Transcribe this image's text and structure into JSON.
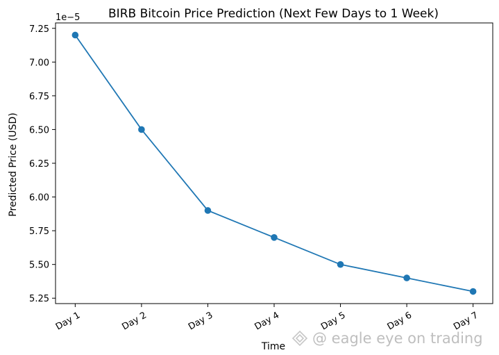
{
  "chart_data": {
    "type": "line",
    "title": "BIRB Bitcoin Price Prediction (Next Few Days to 1 Week)",
    "xlabel": "Time",
    "ylabel": "Predicted Price (USD)",
    "y_exponent_label": "1e−5",
    "categories": [
      "Day 1",
      "Day 2",
      "Day 3",
      "Day 4",
      "Day 5",
      "Day 6",
      "Day 7"
    ],
    "series": [
      {
        "values": [
          7.2,
          6.5,
          5.9,
          5.7,
          5.5,
          5.4,
          5.3
        ],
        "color": "#1f77b4",
        "marker": "circle"
      }
    ],
    "ylim": [
      5.21,
      7.29
    ],
    "yticks": [
      5.25,
      5.5,
      5.75,
      6.0,
      6.25,
      6.5,
      6.75,
      7.0,
      7.25
    ],
    "ytick_labels": [
      "5.25",
      "5.50",
      "5.75",
      "6.00",
      "6.25",
      "6.50",
      "6.75",
      "7.00",
      "7.25"
    ],
    "x_tick_rotation": 30,
    "grid": false,
    "legend": "none"
  },
  "watermark": {
    "text": "@ eagle eye on trading",
    "icon": "diamond-logo-icon"
  }
}
